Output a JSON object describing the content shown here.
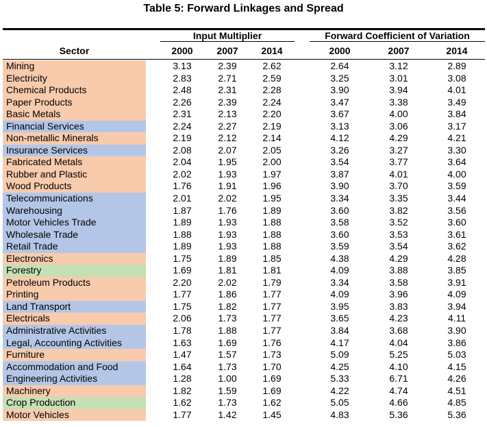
{
  "title": "Table 5: Forward Linkages and Spread",
  "header": {
    "sector": "Sector",
    "group1": "Input Multiplier",
    "group2": "Forward Coefficient of Variation",
    "years": [
      "2000",
      "2007",
      "2014",
      "2000",
      "2007",
      "2014"
    ]
  },
  "colors": {
    "manufacturing": "#f8cbad",
    "services": "#b4c6e7",
    "agriculture": "#c5e0b4"
  },
  "rows": [
    {
      "sector": "Mining",
      "cat": "manufacturing",
      "v": [
        "3.13",
        "2.39",
        "2.62",
        "2.64",
        "3.12",
        "2.89"
      ]
    },
    {
      "sector": "Electricity",
      "cat": "manufacturing",
      "v": [
        "2.83",
        "2.71",
        "2.59",
        "3.25",
        "3.01",
        "3.08"
      ]
    },
    {
      "sector": "Chemical Products",
      "cat": "manufacturing",
      "v": [
        "2.48",
        "2.31",
        "2.28",
        "3.90",
        "3.94",
        "4.01"
      ]
    },
    {
      "sector": "Paper Products",
      "cat": "manufacturing",
      "v": [
        "2.26",
        "2.39",
        "2.24",
        "3.47",
        "3.38",
        "3.49"
      ]
    },
    {
      "sector": "Basic Metals",
      "cat": "manufacturing",
      "v": [
        "2.31",
        "2.13",
        "2.20",
        "3.67",
        "4.00",
        "3.84"
      ]
    },
    {
      "sector": "Financial Services",
      "cat": "services",
      "v": [
        "2.24",
        "2.27",
        "2.19",
        "3.13",
        "3.06",
        "3.17"
      ]
    },
    {
      "sector": "Non-metallic Minerals",
      "cat": "manufacturing",
      "v": [
        "2.19",
        "2.12",
        "2.14",
        "4.12",
        "4.29",
        "4.21"
      ]
    },
    {
      "sector": "Insurance Services",
      "cat": "services",
      "v": [
        "2.08",
        "2.07",
        "2.05",
        "3.26",
        "3.27",
        "3.30"
      ]
    },
    {
      "sector": "Fabricated Metals",
      "cat": "manufacturing",
      "v": [
        "2.04",
        "1.95",
        "2.00",
        "3.54",
        "3.77",
        "3.64"
      ]
    },
    {
      "sector": "Rubber and Plastic",
      "cat": "manufacturing",
      "v": [
        "2.02",
        "1.93",
        "1.97",
        "3.87",
        "4.01",
        "4.00"
      ]
    },
    {
      "sector": "Wood Products",
      "cat": "manufacturing",
      "v": [
        "1.76",
        "1.91",
        "1.96",
        "3.90",
        "3.70",
        "3.59"
      ]
    },
    {
      "sector": "Telecommunications",
      "cat": "services",
      "v": [
        "2.01",
        "2.02",
        "1.95",
        "3.34",
        "3.35",
        "3.44"
      ]
    },
    {
      "sector": "Warehousing",
      "cat": "services",
      "v": [
        "1.87",
        "1.76",
        "1.89",
        "3.60",
        "3.82",
        "3.56"
      ]
    },
    {
      "sector": "Motor Vehicles Trade",
      "cat": "services",
      "v": [
        "1.89",
        "1.93",
        "1.88",
        "3.58",
        "3.52",
        "3.60"
      ]
    },
    {
      "sector": "Wholesale Trade",
      "cat": "services",
      "v": [
        "1.88",
        "1.93",
        "1.88",
        "3.60",
        "3.53",
        "3.61"
      ]
    },
    {
      "sector": "Retail Trade",
      "cat": "services",
      "v": [
        "1.89",
        "1.93",
        "1.88",
        "3.59",
        "3.54",
        "3.62"
      ]
    },
    {
      "sector": "Electronics",
      "cat": "manufacturing",
      "v": [
        "1.75",
        "1.89",
        "1.85",
        "4.38",
        "4.29",
        "4.28"
      ]
    },
    {
      "sector": "Forestry",
      "cat": "agriculture",
      "v": [
        "1.69",
        "1.81",
        "1.81",
        "4.09",
        "3.88",
        "3.85"
      ]
    },
    {
      "sector": "Petroleum Products",
      "cat": "manufacturing",
      "v": [
        "2.20",
        "2.02",
        "1.79",
        "3.34",
        "3.58",
        "3.91"
      ]
    },
    {
      "sector": "Printing",
      "cat": "manufacturing",
      "v": [
        "1.77",
        "1.86",
        "1.77",
        "4.09",
        "3.96",
        "4.09"
      ]
    },
    {
      "sector": "Land Transport",
      "cat": "services",
      "v": [
        "1.75",
        "1.82",
        "1.77",
        "3.95",
        "3.83",
        "3.94"
      ]
    },
    {
      "sector": "Electricals",
      "cat": "manufacturing",
      "v": [
        "2.06",
        "1.73",
        "1.77",
        "3.65",
        "4.23",
        "4.11"
      ]
    },
    {
      "sector": "Administrative Activities",
      "cat": "services",
      "v": [
        "1.78",
        "1.88",
        "1.77",
        "3.84",
        "3.68",
        "3.90"
      ]
    },
    {
      "sector": "Legal, Accounting Activities",
      "cat": "services",
      "v": [
        "1.63",
        "1.69",
        "1.76",
        "4.17",
        "4.04",
        "3.86"
      ]
    },
    {
      "sector": "Furniture",
      "cat": "manufacturing",
      "v": [
        "1.47",
        "1.57",
        "1.73",
        "5.09",
        "5.25",
        "5.03"
      ]
    },
    {
      "sector": "Accommodation and Food",
      "cat": "services",
      "v": [
        "1.64",
        "1.73",
        "1.70",
        "4.25",
        "4.10",
        "4.15"
      ]
    },
    {
      "sector": "Engineering Activities",
      "cat": "services",
      "v": [
        "1.28",
        "1.00",
        "1.69",
        "5.33",
        "6.71",
        "4.26"
      ]
    },
    {
      "sector": "Machinery",
      "cat": "manufacturing",
      "v": [
        "1.82",
        "1.59",
        "1.69",
        "4.22",
        "4.74",
        "4.51"
      ]
    },
    {
      "sector": "Crop Production",
      "cat": "agriculture",
      "v": [
        "1.62",
        "1.73",
        "1.62",
        "5.05",
        "4.66",
        "4.85"
      ]
    },
    {
      "sector": "Motor Vehicles",
      "cat": "manufacturing",
      "v": [
        "1.77",
        "1.42",
        "1.45",
        "4.83",
        "5.36",
        "5.36"
      ]
    }
  ]
}
